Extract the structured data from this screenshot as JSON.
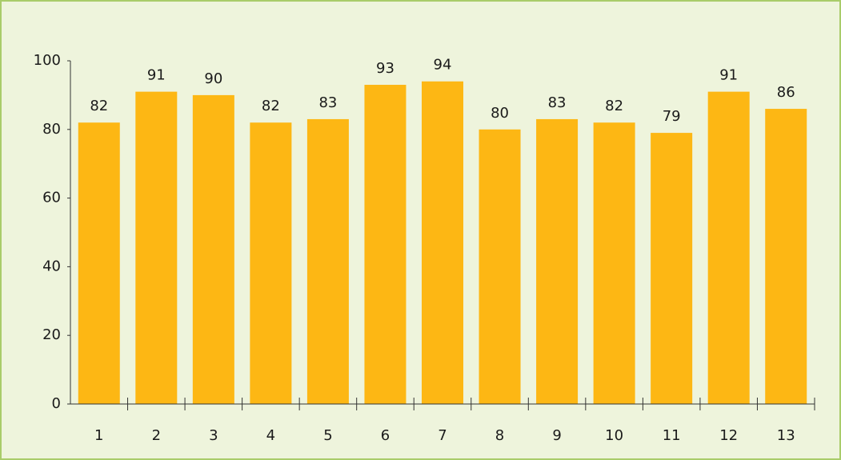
{
  "chart_data": {
    "type": "bar",
    "categories": [
      "1",
      "2",
      "3",
      "4",
      "5",
      "6",
      "7",
      "8",
      "9",
      "10",
      "11",
      "12",
      "13"
    ],
    "values": [
      82,
      91,
      90,
      82,
      83,
      93,
      94,
      80,
      83,
      82,
      79,
      91,
      86
    ],
    "color": "#fdb714",
    "ylim": [
      0,
      100
    ],
    "yticks": [
      0,
      20,
      40,
      60,
      80,
      100
    ],
    "grid": false
  }
}
